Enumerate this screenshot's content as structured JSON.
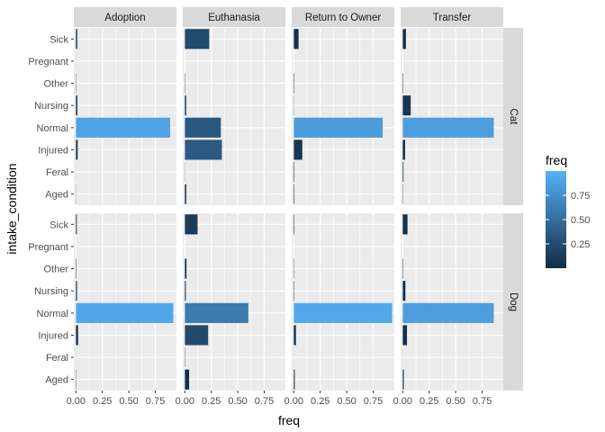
{
  "chart_data": {
    "type": "bar",
    "orientation": "horizontal",
    "facet_columns": [
      "Adoption",
      "Euthanasia",
      "Return to Owner",
      "Transfer"
    ],
    "facet_rows": [
      "Cat",
      "Dog"
    ],
    "categories": [
      "Sick",
      "Pregnant",
      "Other",
      "Nursing",
      "Normal",
      "Injured",
      "Feral",
      "Aged"
    ],
    "xlabel": "freq",
    "ylabel": "intake_condition",
    "xlim": [
      -0.02,
      0.95
    ],
    "x_ticks": [
      0.0,
      0.25,
      0.5,
      0.75
    ],
    "x_tick_labels": [
      "0.00",
      "0.25",
      "0.50",
      "0.75"
    ],
    "grid": true,
    "legend": {
      "title": "freq",
      "position": "right",
      "type": "colorbar",
      "range": [
        0.0,
        1.0
      ],
      "breaks": [
        0.25,
        0.5,
        0.75
      ],
      "break_labels": [
        "0.25",
        "0.50",
        "0.75"
      ],
      "low_color": "#132B43",
      "high_color": "#56B1F7"
    },
    "panels": [
      {
        "row": "Cat",
        "col": "Adoption",
        "values": [
          0.012,
          0.001,
          0.003,
          0.013,
          0.89,
          0.016,
          0.001,
          0.002
        ]
      },
      {
        "row": "Cat",
        "col": "Euthanasia",
        "values": [
          0.23,
          0.0,
          0.003,
          0.012,
          0.34,
          0.35,
          0.002,
          0.013
        ]
      },
      {
        "row": "Cat",
        "col": "Return to Owner",
        "values": [
          0.045,
          0.0,
          0.004,
          0.002,
          0.84,
          0.08,
          0.005,
          0.005
        ]
      },
      {
        "row": "Cat",
        "col": "Transfer",
        "values": [
          0.03,
          0.0,
          0.004,
          0.075,
          0.86,
          0.022,
          0.007,
          0.003
        ]
      },
      {
        "row": "Dog",
        "col": "Adoption",
        "values": [
          0.008,
          0.0,
          0.004,
          0.01,
          0.92,
          0.02,
          0.001,
          0.003
        ]
      },
      {
        "row": "Dog",
        "col": "Euthanasia",
        "values": [
          0.12,
          0.0,
          0.015,
          0.009,
          0.6,
          0.22,
          0.003,
          0.04
        ]
      },
      {
        "row": "Dog",
        "col": "Return to Owner",
        "values": [
          0.005,
          0.0,
          0.003,
          0.004,
          0.93,
          0.02,
          0.001,
          0.009
        ]
      },
      {
        "row": "Dog",
        "col": "Transfer",
        "values": [
          0.045,
          0.0,
          0.004,
          0.025,
          0.86,
          0.04,
          0.001,
          0.01
        ]
      }
    ]
  }
}
